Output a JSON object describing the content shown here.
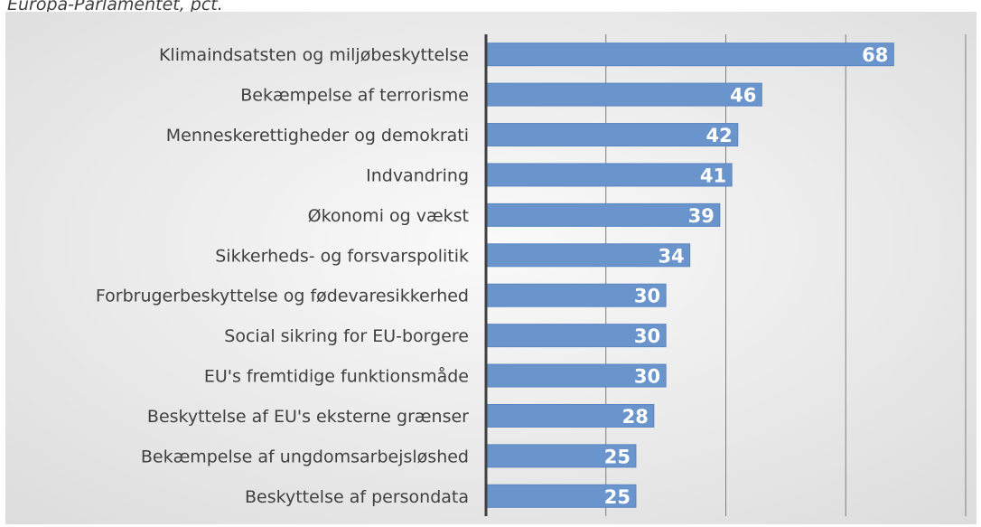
{
  "subtitle": "Europa-Parlamentet, pct.",
  "colors": {
    "bar": "#6a94cc",
    "bar_stroke": "#5b86c2",
    "data_label": "#ffffff",
    "category_label": "#404040",
    "axis": "#404040",
    "grid": "#7f7f7f",
    "panel_light": "#fafafa",
    "panel_dark": "#dcdcdc"
  },
  "chart_data": {
    "type": "bar",
    "orientation": "horizontal",
    "categories": [
      "Klimaindsatsten og miljøbeskyttelse",
      "Bekæmpelse af terrorisme",
      "Menneskerettigheder og demokrati",
      "Indvandring",
      "Økonomi og vækst",
      "Sikkerheds- og forsvarspolitik",
      "Forbrugerbeskyttelse og fødevaresikkerhed",
      "Social sikring for EU-borgere",
      "EU's fremtidige funktionsmåde",
      "Beskyttelse af EU's eksterne grænser",
      "Bekæmpelse af ungdomsarbejsløshed",
      "Beskyttelse af persondata"
    ],
    "values": [
      68,
      46,
      42,
      41,
      39,
      34,
      30,
      30,
      30,
      28,
      25,
      25
    ],
    "xlim": [
      0,
      80
    ],
    "grid_x": [
      20,
      40,
      60,
      80
    ],
    "grid": true,
    "legend": false,
    "data_labels": true
  }
}
